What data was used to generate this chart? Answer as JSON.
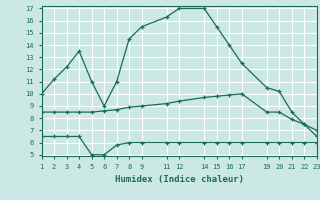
{
  "bg_color": "#cce8e4",
  "grid_color": "#ffffff",
  "line_color": "#1a6b5a",
  "xlabel": "Humidex (Indice chaleur)",
  "ylim": [
    5,
    17
  ],
  "xlim": [
    1,
    23
  ],
  "yticks": [
    5,
    6,
    7,
    8,
    9,
    10,
    11,
    12,
    13,
    14,
    15,
    16,
    17
  ],
  "xticks": [
    1,
    2,
    3,
    4,
    5,
    6,
    7,
    8,
    9,
    11,
    12,
    14,
    15,
    16,
    17,
    19,
    20,
    21,
    22,
    23
  ],
  "xtick_labels": [
    "1",
    "2",
    "3",
    "4",
    "5",
    "6",
    "7",
    "8",
    "9",
    "11",
    "12",
    "14",
    "15",
    "16",
    "17",
    "19",
    "20",
    "21",
    "22",
    "23"
  ],
  "line1_x": [
    1,
    2,
    3,
    4,
    5,
    6,
    7,
    8,
    9,
    11,
    12,
    14,
    15,
    16,
    17,
    19,
    20,
    21,
    22,
    23
  ],
  "line1_y": [
    10.0,
    11.2,
    12.2,
    13.5,
    11.0,
    9.0,
    11.0,
    14.5,
    15.5,
    16.3,
    17.0,
    17.0,
    15.5,
    14.0,
    12.5,
    10.5,
    10.2,
    8.5,
    7.5,
    7.0
  ],
  "line2_x": [
    1,
    2,
    3,
    4,
    5,
    6,
    7,
    8,
    9,
    11,
    12,
    14,
    15,
    16,
    17,
    19,
    20,
    21,
    22,
    23
  ],
  "line2_y": [
    8.5,
    8.5,
    8.5,
    8.5,
    8.5,
    8.6,
    8.7,
    8.9,
    9.0,
    9.2,
    9.4,
    9.7,
    9.8,
    9.9,
    10.0,
    8.5,
    8.5,
    7.9,
    7.5,
    6.5
  ],
  "line3_x": [
    1,
    2,
    3,
    4,
    5,
    6,
    7,
    8,
    9,
    11,
    12,
    14,
    15,
    16,
    17,
    19,
    20,
    21,
    22,
    23
  ],
  "line3_y": [
    6.5,
    6.5,
    6.5,
    6.5,
    5.0,
    5.0,
    5.8,
    6.0,
    6.0,
    6.0,
    6.0,
    6.0,
    6.0,
    6.0,
    6.0,
    6.0,
    6.0,
    6.0,
    6.0,
    6.0
  ]
}
